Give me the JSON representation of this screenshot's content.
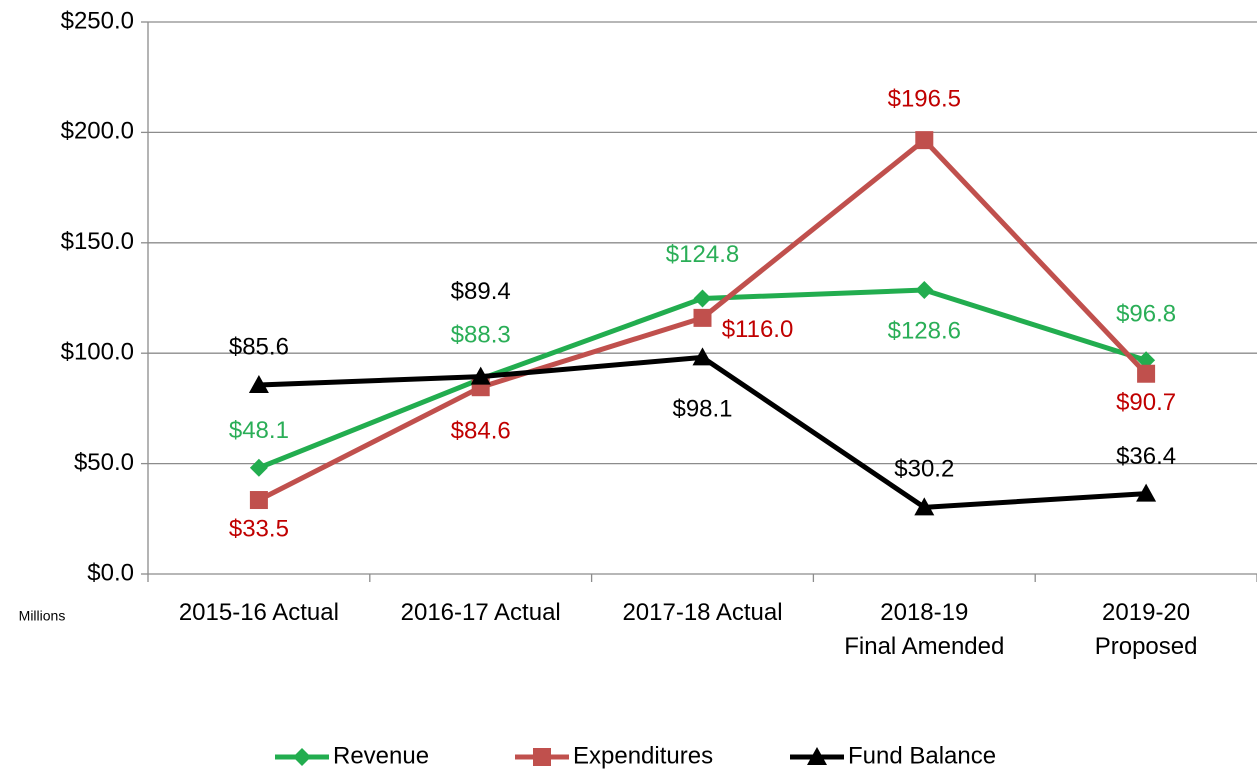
{
  "chart_data": {
    "type": "line",
    "ylabel": "Millions",
    "categories": [
      "2015-16 Actual",
      "2016-17 Actual",
      "2017-18 Actual",
      "2018-19\nFinal Amended",
      "2019-20\nProposed"
    ],
    "series": [
      {
        "name": "Revenue",
        "color": "#22ad4f",
        "label_color": "#2aae57",
        "marker": "diamond",
        "values": [
          48.1,
          88.3,
          124.8,
          128.6,
          96.8
        ],
        "value_labels": [
          "$48.1",
          "$88.3",
          "$124.8",
          "$128.6",
          "$96.8"
        ]
      },
      {
        "name": "Expenditures",
        "color": "#c0504d",
        "label_color": "#c00000",
        "marker": "square",
        "values": [
          33.5,
          84.6,
          116.0,
          196.5,
          90.7
        ],
        "value_labels": [
          "$33.5",
          "$84.6",
          "$116.0",
          "$196.5",
          "$90.7"
        ]
      },
      {
        "name": "Fund Balance",
        "color": "#000000",
        "label_color": "#000000",
        "marker": "triangle",
        "values": [
          85.6,
          89.4,
          98.1,
          30.2,
          36.4
        ],
        "value_labels": [
          "$85.6",
          "$89.4",
          "$98.1",
          "$30.2",
          "$36.4"
        ]
      }
    ],
    "ylim": [
      0,
      250
    ],
    "yticks": [
      {
        "value": 0,
        "label": "$0.0"
      },
      {
        "value": 50,
        "label": "$50.0"
      },
      {
        "value": 100,
        "label": "$100.0"
      },
      {
        "value": 150,
        "label": "$150.0"
      },
      {
        "value": 200,
        "label": "$200.0"
      },
      {
        "value": 250,
        "label": "$250.0"
      }
    ],
    "grid": true,
    "legend": "bottom"
  }
}
